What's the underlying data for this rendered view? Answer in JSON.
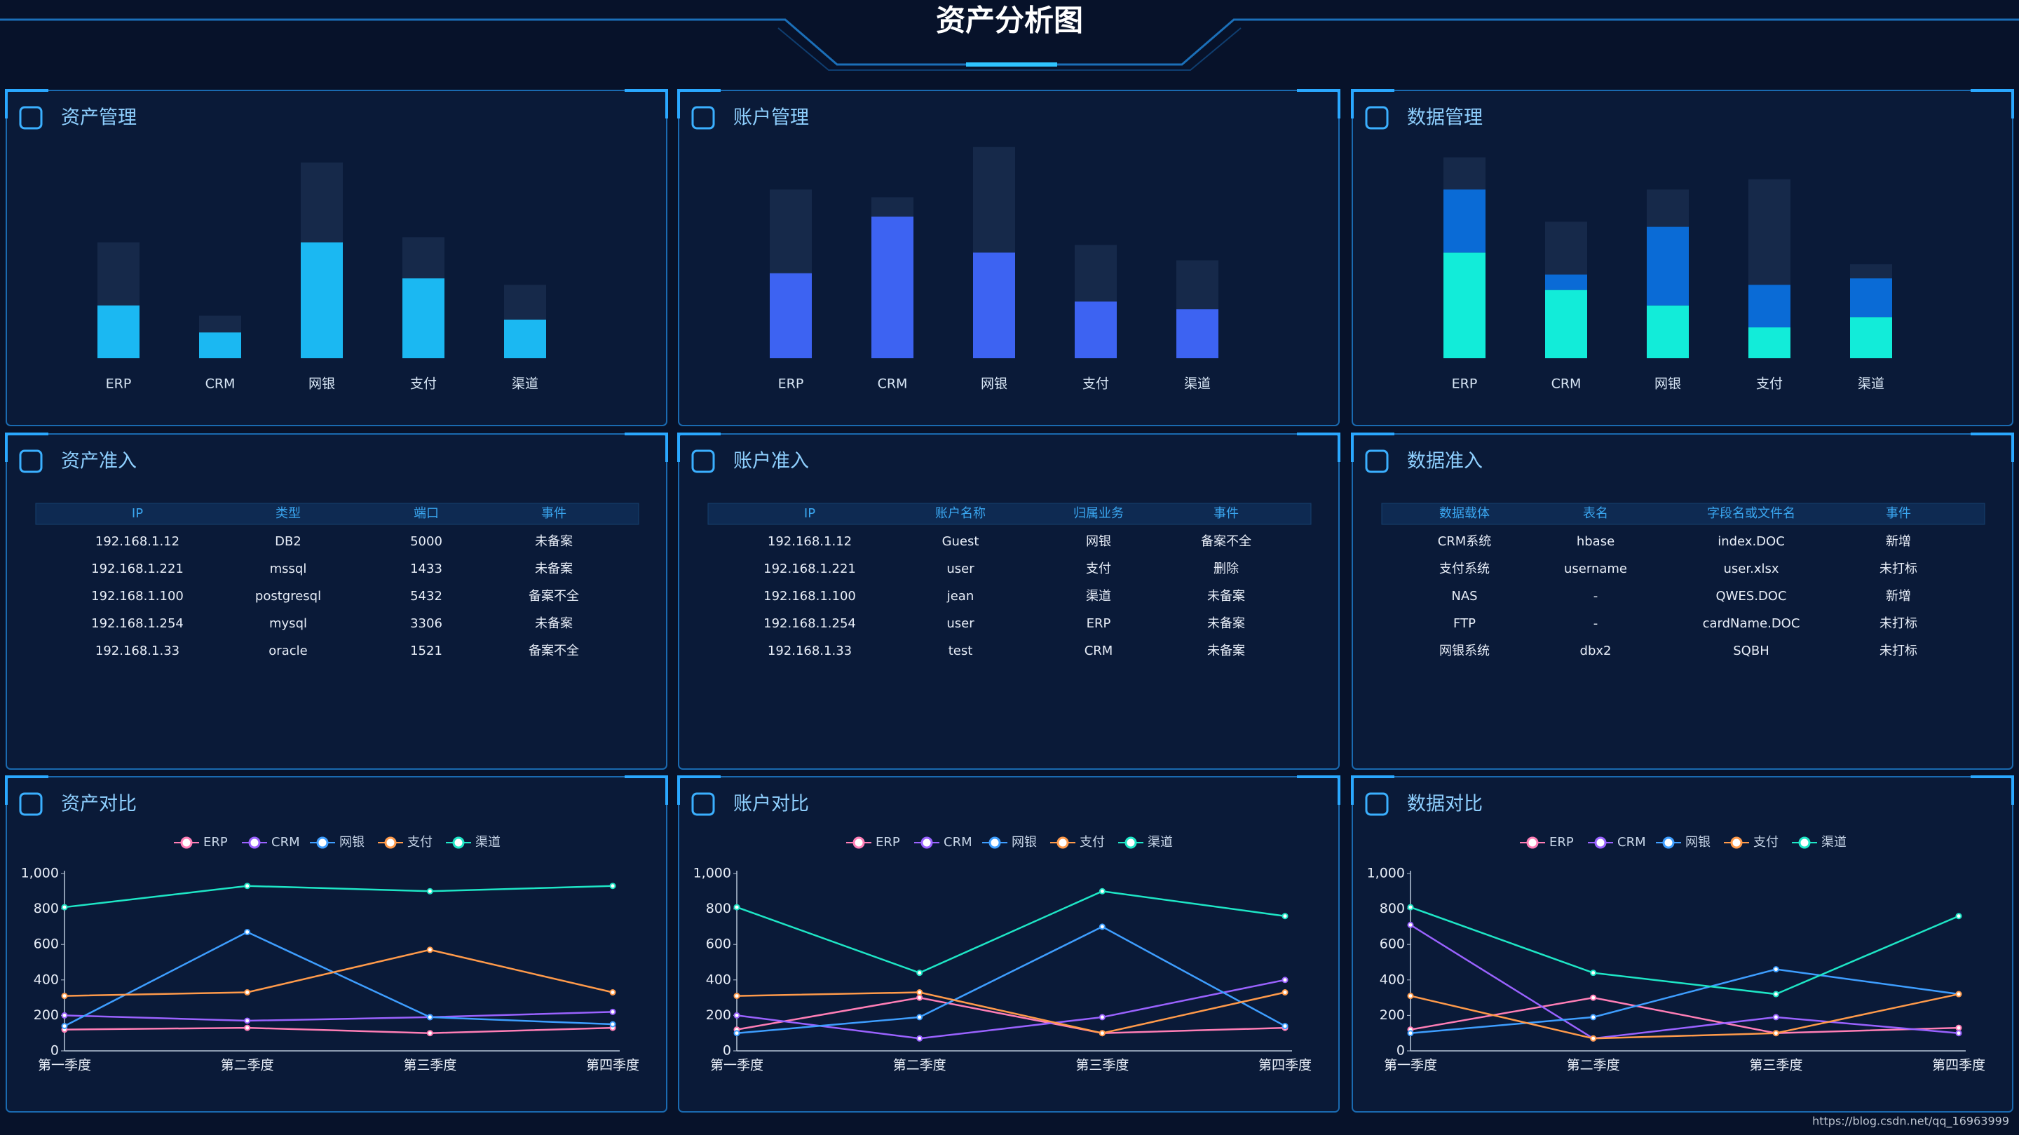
{
  "title": "资产分析图",
  "footer": "https://blog.csdn.net/qq_16963999",
  "chart_data": [
    {
      "type": "bar",
      "title": "资产管理",
      "categories": [
        "ERP",
        "CRM",
        "网银",
        "支付",
        "渠道"
      ],
      "background": {
        "color": "#16294a",
        "values": [
          90,
          33,
          152,
          94,
          57
        ]
      },
      "series": [
        {
          "color": "#1bb8f2",
          "values": [
            41,
            20,
            90,
            62,
            30
          ]
        }
      ]
    },
    {
      "type": "bar",
      "title": "账户管理",
      "categories": [
        "ERP",
        "CRM",
        "网银",
        "支付",
        "渠道"
      ],
      "background": {
        "color": "#16294a",
        "values": [
          131,
          125,
          164,
          88,
          76
        ]
      },
      "series": [
        {
          "color": "#3d63f2",
          "values": [
            66,
            110,
            82,
            44,
            38
          ]
        }
      ]
    },
    {
      "type": "bar",
      "title": "数据管理",
      "categories": [
        "ERP",
        "CRM",
        "网银",
        "支付",
        "渠道"
      ],
      "stacked": true,
      "background": {
        "color": "#16294a",
        "values": [
          156,
          106,
          131,
          139,
          73
        ]
      },
      "series": [
        {
          "color": "#12ecd9",
          "values": [
            82,
            53,
            41,
            24,
            32
          ]
        },
        {
          "color": "#0a6bd6",
          "values": [
            49,
            12,
            61,
            33,
            30
          ]
        }
      ]
    },
    {
      "type": "line",
      "title": "资产对比",
      "categories": [
        "第一季度",
        "第二季度",
        "第三季度",
        "第四季度"
      ],
      "ylim": [
        0,
        1000
      ],
      "yticks": [
        0,
        200,
        400,
        600,
        800,
        {
          "value": 1000,
          "label": "1,000"
        }
      ],
      "grid": false,
      "legend": "top",
      "series": [
        {
          "name": "ERP",
          "color": "#ff7eb6",
          "values": [
            120,
            130,
            100,
            130
          ]
        },
        {
          "name": "CRM",
          "color": "#9a62ff",
          "values": [
            200,
            170,
            190,
            220
          ]
        },
        {
          "name": "网银",
          "color": "#3e9eff",
          "values": [
            140,
            670,
            190,
            150
          ]
        },
        {
          "name": "支付",
          "color": "#ff9a4a",
          "values": [
            310,
            330,
            570,
            330
          ]
        },
        {
          "name": "渠道",
          "color": "#1ee6c6",
          "values": [
            810,
            930,
            900,
            930
          ]
        }
      ]
    },
    {
      "type": "line",
      "title": "账户对比",
      "categories": [
        "第一季度",
        "第二季度",
        "第三季度",
        "第四季度"
      ],
      "ylim": [
        0,
        1000
      ],
      "yticks": [
        0,
        200,
        400,
        600,
        800,
        {
          "value": 1000,
          "label": "1,000"
        }
      ],
      "grid": false,
      "legend": "top",
      "series": [
        {
          "name": "ERP",
          "color": "#ff7eb6",
          "values": [
            120,
            300,
            100,
            130
          ]
        },
        {
          "name": "CRM",
          "color": "#9a62ff",
          "values": [
            200,
            70,
            190,
            400
          ]
        },
        {
          "name": "网银",
          "color": "#3e9eff",
          "values": [
            100,
            190,
            700,
            140
          ]
        },
        {
          "name": "支付",
          "color": "#ff9a4a",
          "values": [
            310,
            330,
            100,
            330
          ]
        },
        {
          "name": "渠道",
          "color": "#1ee6c6",
          "values": [
            810,
            440,
            900,
            760
          ]
        }
      ]
    },
    {
      "type": "line",
      "title": "数据对比",
      "categories": [
        "第一季度",
        "第二季度",
        "第三季度",
        "第四季度"
      ],
      "ylim": [
        0,
        1000
      ],
      "yticks": [
        0,
        200,
        400,
        600,
        800,
        {
          "value": 1000,
          "label": "1,000"
        }
      ],
      "grid": false,
      "legend": "top",
      "series": [
        {
          "name": "ERP",
          "color": "#ff7eb6",
          "values": [
            120,
            300,
            100,
            130
          ]
        },
        {
          "name": "CRM",
          "color": "#9a62ff",
          "values": [
            710,
            70,
            190,
            100
          ]
        },
        {
          "name": "网银",
          "color": "#3e9eff",
          "values": [
            100,
            190,
            460,
            320
          ]
        },
        {
          "name": "支付",
          "color": "#ff9a4a",
          "values": [
            310,
            70,
            100,
            320
          ]
        },
        {
          "name": "渠道",
          "color": "#1ee6c6",
          "values": [
            810,
            440,
            320,
            760
          ]
        }
      ]
    }
  ],
  "tables": [
    {
      "title": "资产准入",
      "columns": [
        "IP",
        "类型",
        "端口",
        "事件"
      ],
      "rows": [
        [
          "192.168.1.12",
          "DB2",
          "5000",
          "未备案"
        ],
        [
          "192.168.1.221",
          "mssql",
          "1433",
          "未备案"
        ],
        [
          "192.168.1.100",
          "postgresql",
          "5432",
          "备案不全"
        ],
        [
          "192.168.1.254",
          "mysql",
          "3306",
          "未备案"
        ],
        [
          "192.168.1.33",
          "oracle",
          "1521",
          "备案不全"
        ]
      ]
    },
    {
      "title": "账户准入",
      "columns": [
        "IP",
        "账户名称",
        "归属业务",
        "事件"
      ],
      "rows": [
        [
          "192.168.1.12",
          "Guest",
          "网银",
          "备案不全"
        ],
        [
          "192.168.1.221",
          "user",
          "支付",
          "删除"
        ],
        [
          "192.168.1.100",
          "jean",
          "渠道",
          "未备案"
        ],
        [
          "192.168.1.254",
          "user",
          "ERP",
          "未备案"
        ],
        [
          "192.168.1.33",
          "test",
          "CRM",
          "未备案"
        ]
      ]
    },
    {
      "title": "数据准入",
      "columns": [
        "数据载体",
        "表名",
        "字段名或文件名",
        "事件"
      ],
      "rows": [
        [
          "CRM系统",
          "hbase",
          "index.DOC",
          "新增"
        ],
        [
          "支付系统",
          "username",
          "user.xlsx",
          "未打标"
        ],
        [
          "NAS",
          "-",
          "QWES.DOC",
          "新增"
        ],
        [
          "FTP",
          "-",
          "cardName.DOC",
          "未打标"
        ],
        [
          "网银系统",
          "dbx2",
          "SQBH",
          "未打标"
        ]
      ]
    }
  ]
}
